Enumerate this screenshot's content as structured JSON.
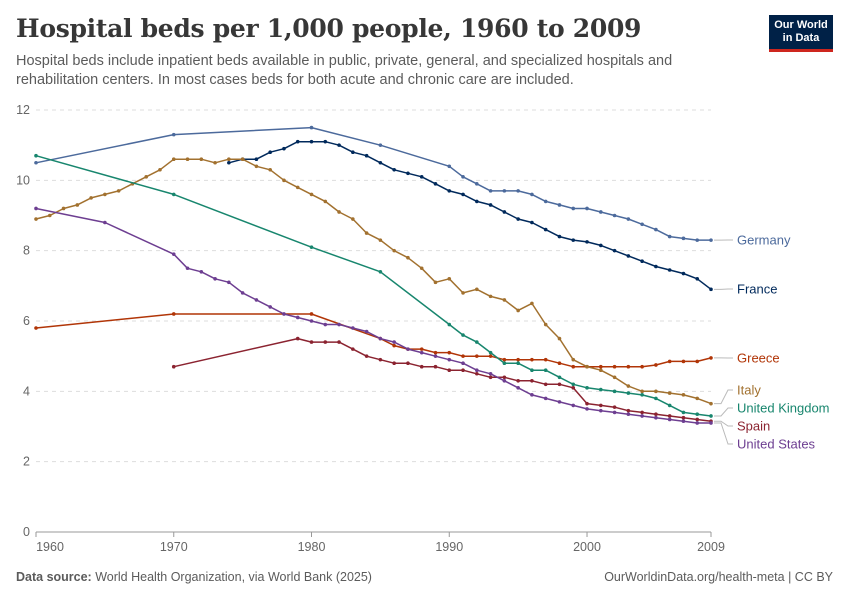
{
  "header": {
    "title": "Hospital beds per 1,000 people, 1960 to 2009",
    "subtitle": "Hospital beds include inpatient beds available in public, private, general, and specialized hospitals and rehabilitation centers. In most cases beds for both acute and chronic care are included."
  },
  "logo": {
    "line1": "Our World",
    "line2": "in Data",
    "bg": "#002147",
    "accent": "#ce261e"
  },
  "footer": {
    "source_label": "Data source:",
    "source_text": "World Health Organization, via World Bank (2025)",
    "right": "OurWorldinData.org/health-meta | CC BY"
  },
  "chart_data": {
    "type": "line",
    "xlim": [
      1960,
      2009
    ],
    "ylim": [
      0,
      12
    ],
    "x_ticks": [
      "1960",
      "1970",
      "1980",
      "1990",
      "2000",
      "2009"
    ],
    "y_ticks": [
      "0",
      "2",
      "4",
      "6",
      "8",
      "10",
      "12"
    ],
    "grid": "horizontal-dashed",
    "legend": "right-end-labels",
    "series": [
      {
        "name": "Germany",
        "color": "#4c6a9c",
        "x": [
          1960,
          1970,
          1980,
          1985,
          1990,
          1991,
          1992,
          1993,
          1994,
          1995,
          1996,
          1997,
          1998,
          1999,
          2000,
          2001,
          2002,
          2003,
          2004,
          2005,
          2006,
          2007,
          2008,
          2009
        ],
        "y": [
          10.5,
          11.3,
          11.5,
          11.0,
          10.4,
          10.1,
          9.9,
          9.7,
          9.7,
          9.7,
          9.6,
          9.4,
          9.3,
          9.2,
          9.2,
          9.1,
          9.0,
          8.9,
          8.75,
          8.6,
          8.4,
          8.35,
          8.3,
          8.3
        ]
      },
      {
        "name": "France",
        "color": "#00295b",
        "x": [
          1974,
          1975,
          1976,
          1977,
          1978,
          1979,
          1980,
          1981,
          1982,
          1983,
          1984,
          1985,
          1986,
          1987,
          1988,
          1989,
          1990,
          1991,
          1992,
          1993,
          1994,
          1995,
          1996,
          1997,
          1998,
          1999,
          2000,
          2001,
          2002,
          2003,
          2004,
          2005,
          2006,
          2007,
          2008,
          2009
        ],
        "y": [
          10.5,
          10.6,
          10.6,
          10.8,
          10.9,
          11.1,
          11.1,
          11.1,
          11.0,
          10.8,
          10.7,
          10.5,
          10.3,
          10.2,
          10.1,
          9.9,
          9.7,
          9.6,
          9.4,
          9.3,
          9.1,
          8.9,
          8.8,
          8.6,
          8.4,
          8.3,
          8.25,
          8.15,
          8.0,
          7.85,
          7.7,
          7.55,
          7.45,
          7.35,
          7.2,
          6.9
        ]
      },
      {
        "name": "Greece",
        "color": "#b13507",
        "x": [
          1960,
          1970,
          1980,
          1985,
          1986,
          1987,
          1988,
          1989,
          1990,
          1991,
          1992,
          1993,
          1994,
          1995,
          1996,
          1997,
          1998,
          1999,
          2000,
          2001,
          2002,
          2003,
          2004,
          2005,
          2006,
          2007,
          2008,
          2009
        ],
        "y": [
          5.8,
          6.2,
          6.2,
          5.5,
          5.3,
          5.2,
          5.2,
          5.1,
          5.1,
          5.0,
          5.0,
          5.0,
          4.9,
          4.9,
          4.9,
          4.9,
          4.8,
          4.7,
          4.7,
          4.7,
          4.7,
          4.7,
          4.7,
          4.75,
          4.85,
          4.85,
          4.85,
          4.95
        ]
      },
      {
        "name": "Italy",
        "color": "#a2712f",
        "x": [
          1960,
          1961,
          1962,
          1963,
          1964,
          1965,
          1966,
          1967,
          1968,
          1969,
          1970,
          1971,
          1972,
          1973,
          1974,
          1975,
          1976,
          1977,
          1978,
          1979,
          1980,
          1981,
          1982,
          1983,
          1984,
          1985,
          1986,
          1987,
          1988,
          1989,
          1990,
          1991,
          1992,
          1993,
          1994,
          1995,
          1996,
          1997,
          1998,
          1999,
          2000,
          2001,
          2002,
          2003,
          2004,
          2005,
          2006,
          2007,
          2008,
          2009
        ],
        "y": [
          8.9,
          9.0,
          9.2,
          9.3,
          9.5,
          9.6,
          9.7,
          9.9,
          10.1,
          10.3,
          10.6,
          10.6,
          10.6,
          10.5,
          10.6,
          10.6,
          10.4,
          10.3,
          10.0,
          9.8,
          9.6,
          9.4,
          9.1,
          8.9,
          8.5,
          8.3,
          8.0,
          7.8,
          7.5,
          7.1,
          7.2,
          6.8,
          6.9,
          6.7,
          6.6,
          6.3,
          6.5,
          5.9,
          5.5,
          4.9,
          4.7,
          4.6,
          4.4,
          4.15,
          4.0,
          4.0,
          3.95,
          3.9,
          3.8,
          3.65
        ]
      },
      {
        "name": "United Kingdom",
        "color": "#18866e",
        "x": [
          1960,
          1970,
          1980,
          1985,
          1990,
          1991,
          1992,
          1993,
          1994,
          1995,
          1996,
          1997,
          1998,
          1999,
          2000,
          2001,
          2002,
          2003,
          2004,
          2005,
          2006,
          2007,
          2008,
          2009
        ],
        "y": [
          10.7,
          9.6,
          8.1,
          7.4,
          5.9,
          5.6,
          5.4,
          5.1,
          4.8,
          4.8,
          4.6,
          4.6,
          4.4,
          4.2,
          4.1,
          4.05,
          4.0,
          3.95,
          3.9,
          3.8,
          3.6,
          3.4,
          3.35,
          3.3
        ]
      },
      {
        "name": "Spain",
        "color": "#8b2330",
        "x": [
          1970,
          1979,
          1980,
          1981,
          1982,
          1983,
          1984,
          1985,
          1986,
          1987,
          1988,
          1989,
          1990,
          1991,
          1992,
          1993,
          1994,
          1995,
          1996,
          1997,
          1998,
          1999,
          2000,
          2001,
          2002,
          2003,
          2004,
          2005,
          2006,
          2007,
          2008,
          2009
        ],
        "y": [
          4.7,
          5.5,
          5.4,
          5.4,
          5.4,
          5.2,
          5.0,
          4.9,
          4.8,
          4.8,
          4.7,
          4.7,
          4.6,
          4.6,
          4.5,
          4.4,
          4.4,
          4.3,
          4.3,
          4.2,
          4.2,
          4.1,
          3.65,
          3.6,
          3.55,
          3.45,
          3.4,
          3.35,
          3.3,
          3.25,
          3.2,
          3.15
        ]
      },
      {
        "name": "United States",
        "color": "#6d3e91",
        "x": [
          1960,
          1965,
          1970,
          1971,
          1972,
          1973,
          1974,
          1975,
          1976,
          1977,
          1978,
          1979,
          1980,
          1981,
          1982,
          1983,
          1984,
          1985,
          1986,
          1987,
          1988,
          1989,
          1990,
          1991,
          1992,
          1993,
          1994,
          1995,
          1996,
          1997,
          1998,
          1999,
          2000,
          2001,
          2002,
          2003,
          2004,
          2005,
          2006,
          2007,
          2008,
          2009
        ],
        "y": [
          9.2,
          8.8,
          7.9,
          7.5,
          7.4,
          7.2,
          7.1,
          6.8,
          6.6,
          6.4,
          6.2,
          6.1,
          6.0,
          5.9,
          5.9,
          5.8,
          5.7,
          5.5,
          5.4,
          5.2,
          5.1,
          5.0,
          4.9,
          4.8,
          4.6,
          4.5,
          4.3,
          4.1,
          3.9,
          3.8,
          3.7,
          3.6,
          3.5,
          3.45,
          3.4,
          3.35,
          3.3,
          3.25,
          3.2,
          3.15,
          3.1,
          3.1
        ]
      }
    ],
    "end_labels": [
      {
        "name": "Germany",
        "color": "#4c6a9c"
      },
      {
        "name": "France",
        "color": "#00295b"
      },
      {
        "name": "Greece",
        "color": "#b13507"
      },
      {
        "name": "Italy",
        "color": "#a2712f"
      },
      {
        "name": "United Kingdom",
        "color": "#18866e"
      },
      {
        "name": "Spain",
        "color": "#8b2330"
      },
      {
        "name": "United States",
        "color": "#6d3e91"
      }
    ]
  }
}
